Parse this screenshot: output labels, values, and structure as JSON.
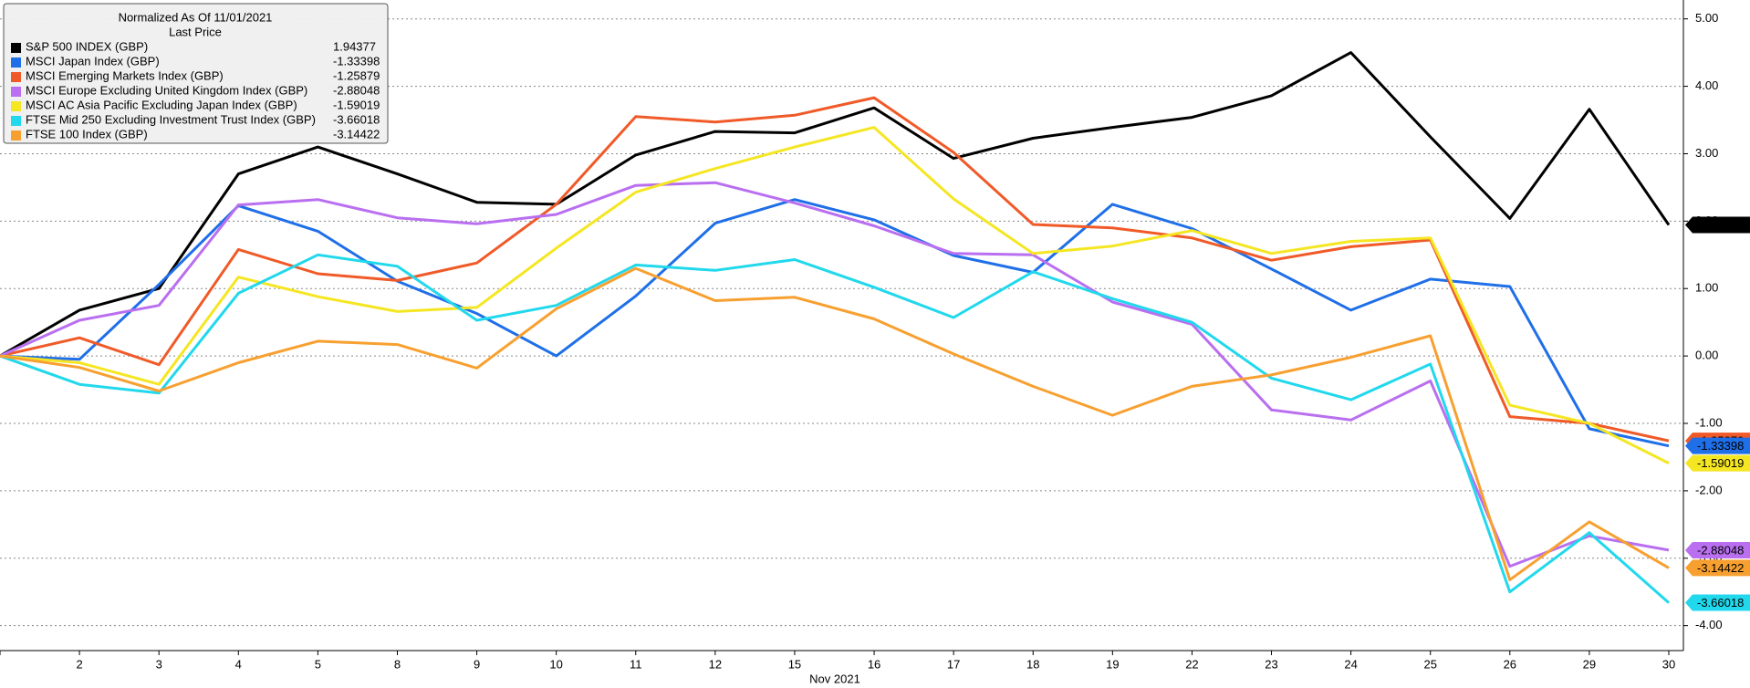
{
  "chart_data": {
    "type": "line",
    "legend_title": "Normalized As Of 11/01/2021",
    "legend_subtitle": "Last Price",
    "x_label": "Nov 2021",
    "categories": [
      null,
      "2",
      "3",
      "4",
      "5",
      "8",
      "9",
      "10",
      "11",
      "12",
      "15",
      "16",
      "17",
      "18",
      "19",
      "22",
      "23",
      "24",
      "25",
      "26",
      "29",
      "30"
    ],
    "ylim": [
      -4.37,
      5.28
    ],
    "yticks": [
      {
        "value": 5,
        "label": "5.00"
      },
      {
        "value": 4,
        "label": "4.00"
      },
      {
        "value": 3,
        "label": "3.00"
      },
      {
        "value": 2,
        "label": "2.00"
      },
      {
        "value": 1,
        "label": "1.00"
      },
      {
        "value": 0,
        "label": "0.00"
      },
      {
        "value": -1,
        "label": "-1.00"
      },
      {
        "value": -2,
        "label": "-2.00"
      },
      {
        "value": -3,
        "label": "-3.00"
      },
      {
        "value": -4,
        "label": "-4.00"
      }
    ],
    "grid": true,
    "legend": "upper left",
    "series": [
      {
        "name": "S&P 500 INDEX (GBP)",
        "color": "#000000",
        "values": [
          0,
          0.68,
          1.0,
          2.7,
          3.1,
          2.7,
          2.28,
          2.25,
          2.98,
          3.33,
          3.31,
          3.68,
          2.93,
          3.23,
          3.39,
          3.54,
          3.86,
          4.5,
          3.25,
          2.04,
          3.66,
          1.94377
        ]
      },
      {
        "name": "MSCI Japan Index (GBP)",
        "color": "#1f6fe8",
        "values": [
          0,
          -0.05,
          1.06,
          2.23,
          1.85,
          1.11,
          0.63,
          0,
          0.89,
          1.97,
          2.32,
          2.02,
          1.49,
          1.24,
          2.25,
          1.89,
          1.29,
          0.68,
          1.14,
          1.03,
          -1.08,
          -1.33398
        ]
      },
      {
        "name": "MSCI Emerging Markets Index (GBP)",
        "color": "#f05a28",
        "values": [
          0,
          0.27,
          -0.13,
          1.58,
          1.22,
          1.12,
          1.38,
          2.25,
          3.55,
          3.47,
          3.57,
          3.83,
          3.02,
          1.95,
          1.9,
          1.75,
          1.42,
          1.62,
          1.72,
          -0.9,
          -1.0,
          -1.25879
        ]
      },
      {
        "name": "MSCI Europe Excluding United Kingdom Index (GBP)",
        "color": "#b96ff0",
        "values": [
          0,
          0.53,
          0.75,
          2.24,
          2.32,
          2.05,
          1.96,
          2.1,
          2.53,
          2.57,
          2.27,
          1.93,
          1.52,
          1.5,
          0.8,
          0.47,
          -0.8,
          -0.95,
          -0.37,
          -3.12,
          -2.67,
          -2.88048
        ]
      },
      {
        "name": "MSCI AC Asia Pacific Excluding Japan Index (GBP)",
        "color": "#f5e623",
        "values": [
          0,
          -0.1,
          -0.42,
          1.17,
          0.88,
          0.66,
          0.72,
          1.6,
          2.43,
          2.78,
          3.1,
          3.39,
          2.33,
          1.52,
          1.63,
          1.86,
          1.52,
          1.7,
          1.75,
          -0.73,
          -1.0,
          -1.59019
        ]
      },
      {
        "name": "FTSE Mid 250 Excluding Investment Trust Index (GBP)",
        "color": "#21d8ec",
        "values": [
          0,
          -0.42,
          -0.55,
          0.93,
          1.5,
          1.33,
          0.53,
          0.75,
          1.35,
          1.27,
          1.43,
          1.02,
          0.57,
          1.25,
          0.85,
          0.5,
          -0.33,
          -0.65,
          -0.12,
          -3.5,
          -2.62,
          -3.66018
        ]
      },
      {
        "name": "FTSE 100 Index (GBP)",
        "color": "#f7a030",
        "values": [
          0,
          -0.17,
          -0.52,
          -0.1,
          0.22,
          0.17,
          -0.18,
          0.7,
          1.3,
          0.82,
          0.87,
          0.55,
          0.03,
          -0.45,
          -0.88,
          -0.45,
          -0.28,
          -0.02,
          0.3,
          -3.32,
          -2.46,
          -3.14422
        ]
      }
    ]
  }
}
